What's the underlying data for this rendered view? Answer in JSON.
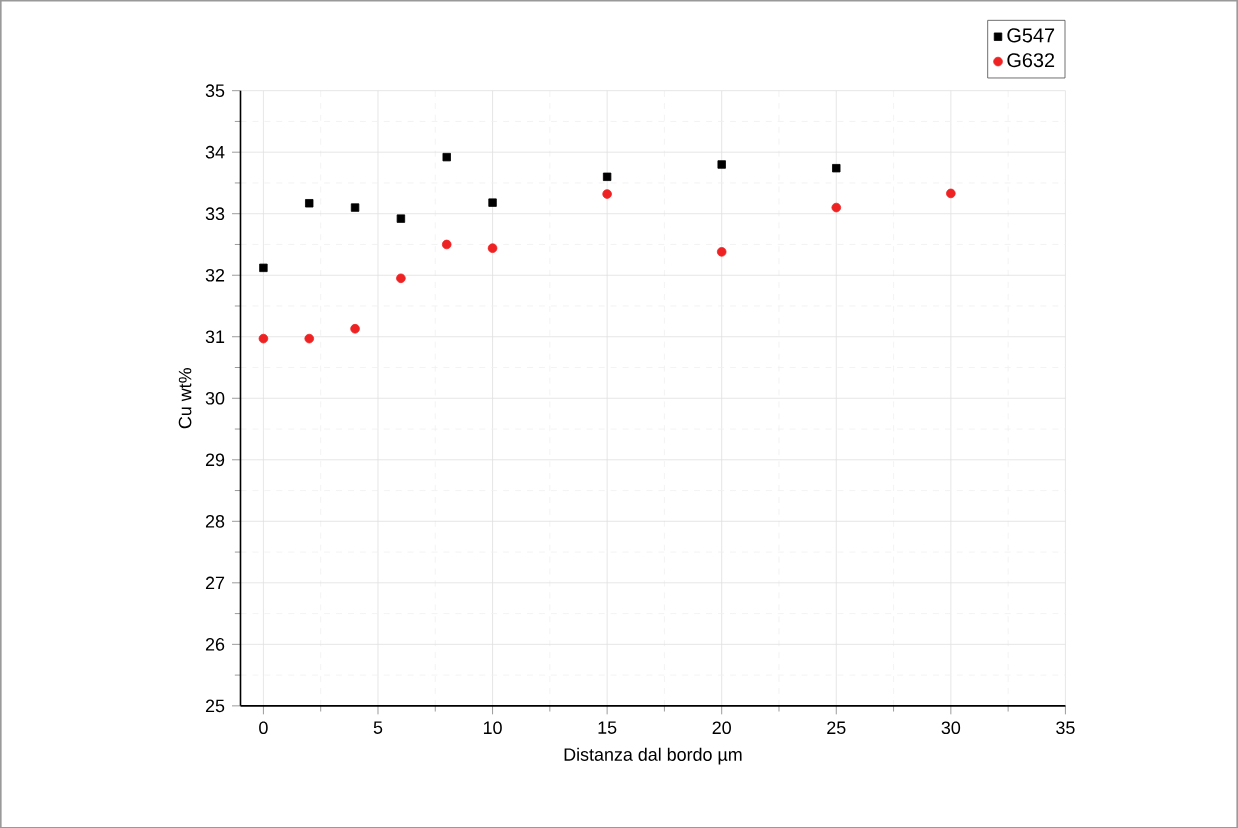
{
  "chart_data": {
    "type": "scatter",
    "xlabel": "Distanza dal bordo µm",
    "ylabel": "Cu wt%",
    "series": [
      {
        "name": "G547",
        "color": "#000000",
        "marker": "square",
        "x": [
          0,
          2,
          4,
          6,
          8,
          10,
          15,
          20,
          25
        ],
        "values": [
          32.12,
          33.17,
          33.1,
          32.92,
          33.92,
          33.18,
          33.6,
          33.8,
          33.74
        ]
      },
      {
        "name": "G632",
        "color": "#ee2222",
        "marker": "circle",
        "x": [
          0,
          2,
          4,
          6,
          8,
          10,
          15,
          20,
          25,
          30
        ],
        "values": [
          30.97,
          30.97,
          31.13,
          31.95,
          32.5,
          32.44,
          33.32,
          32.38,
          33.1,
          33.33
        ]
      }
    ],
    "xlim": [
      -1,
      35
    ],
    "xticks": [
      0,
      5,
      10,
      15,
      20,
      25,
      30,
      35
    ],
    "ylim": [
      25,
      35
    ],
    "yticks": [
      25,
      26,
      27,
      28,
      29,
      30,
      31,
      32,
      33,
      34,
      35
    ],
    "grid": true,
    "legend": "top right"
  }
}
